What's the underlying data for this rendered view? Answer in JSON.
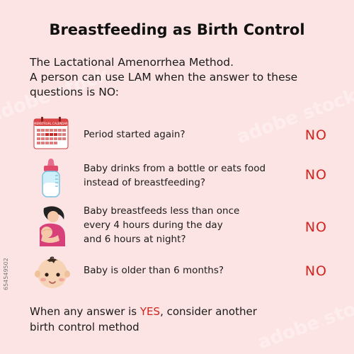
{
  "title": "Breastfeeding as Birth Control",
  "intro": {
    "line1": "The Lactational Amenorrhea Method.",
    "line2": "A person can use LAM when the answer to these",
    "line3": "questions is NO:"
  },
  "questions": [
    {
      "icon": "calendar-icon",
      "calendar_label": "MENSTRUAL CALENDAR",
      "line1": "Period started again?",
      "line2": "",
      "line3": "",
      "answer": "NO"
    },
    {
      "icon": "baby-bottle-icon",
      "line1": "Baby drinks from a bottle or eats food",
      "line2": "instead of breastfeeding?",
      "line3": "",
      "answer": "NO"
    },
    {
      "icon": "breastfeeding-mother-icon",
      "line1": "Baby breastfeeds less than once",
      "line2": "every 4 hours during the day",
      "line3": "and 6 hours at night?",
      "answer": "NO"
    },
    {
      "icon": "baby-face-icon",
      "line1": "Baby is older than 6 months?",
      "line2": "",
      "line3": "",
      "answer": "NO"
    }
  ],
  "footer": {
    "before": "When any answer is ",
    "highlight": "YES",
    "after": ", consider another",
    "line2": "birth control method"
  },
  "stock_id": "654549502",
  "watermark": "adobe stock",
  "colors": {
    "background": "#fde4e4",
    "accent": "#d0241f"
  }
}
